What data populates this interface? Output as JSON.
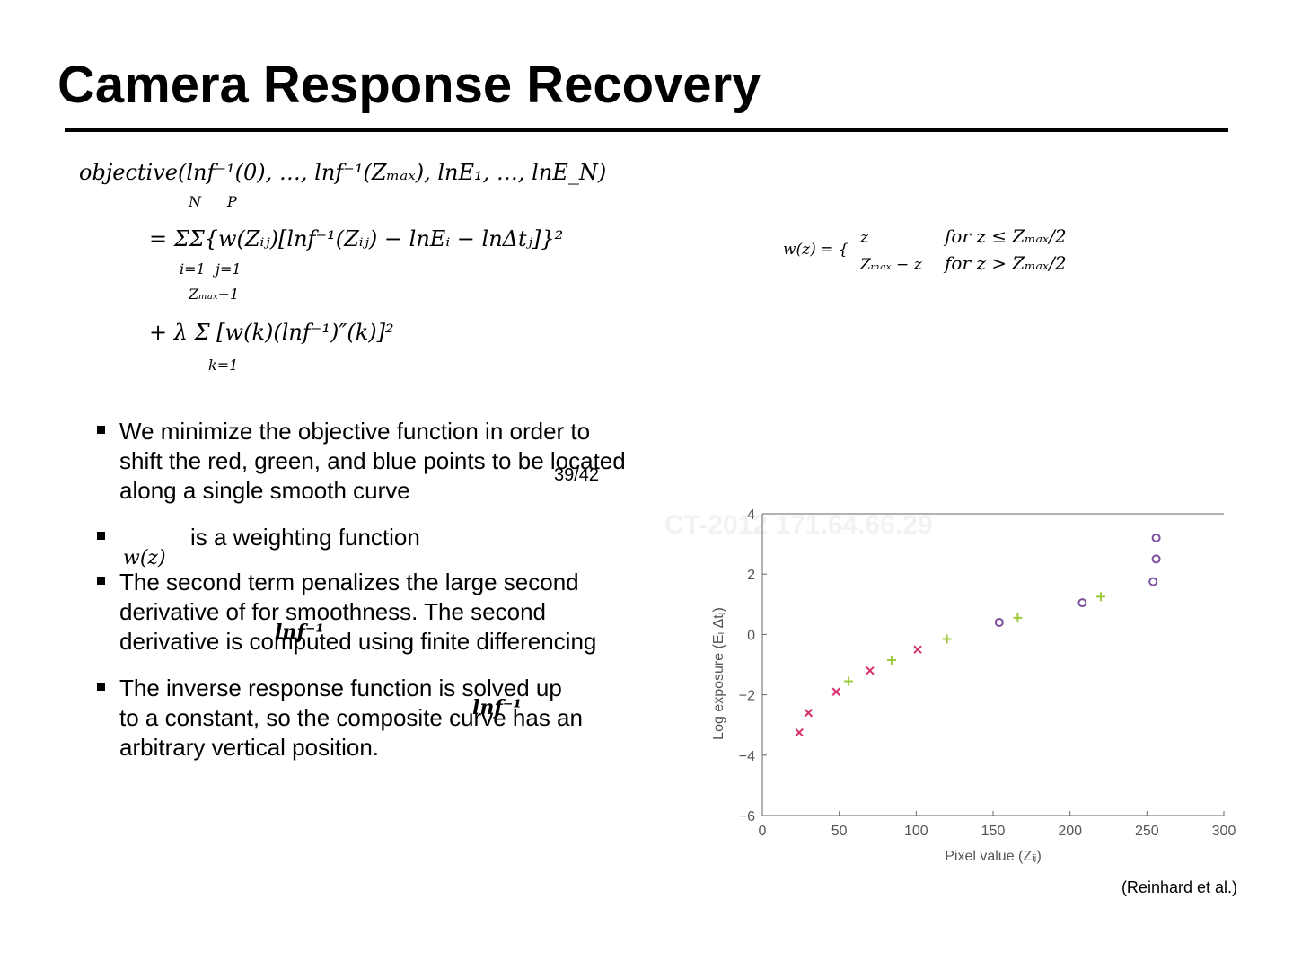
{
  "title": "Camera Response Recovery",
  "objective": {
    "line1": "objective(lnf⁻¹(0), …, lnf⁻¹(Zₘₐₓ), lnE₁, …, lnE_N)",
    "line2": "= ΣΣ{w(Zᵢⱼ)[lnf⁻¹(Zᵢⱼ) − lnEᵢ − lnΔtⱼ]}²",
    "line2_upper": [
      "N",
      "P"
    ],
    "line2_lower": [
      "i=1",
      "j=1"
    ],
    "line3": "+ λ Σ [w(k)(lnf⁻¹)″(k)]²",
    "line3_upper": "Zₘₐₓ−1",
    "line3_lower": "k=1"
  },
  "weight_function": {
    "lhs": "w(z) = {",
    "cases": [
      [
        "z",
        "for z ≤ Zₘₐₓ/2"
      ],
      [
        "Zₘₐₓ − z",
        "for z > Zₘₐₓ/2"
      ]
    ]
  },
  "bullets": [
    {
      "lines": [
        "We minimize the objective function in order to",
        "shift the red, green, and blue points to be located",
        "along a single smooth curve"
      ]
    },
    {
      "math": "w(z)",
      "lines": [
        "is a weighting function"
      ]
    },
    {
      "math": "lnf⁻¹",
      "lines": [
        "The second term penalizes the large second",
        "derivative  of              for smoothness. The second",
        "derivative is computed using finite differencing"
      ]
    },
    {
      "math": "lnf⁻¹",
      "lines": [
        "The inverse response function              is solved up",
        "to a constant, so the composite curve has an",
        "arbitrary vertical position."
      ]
    }
  ],
  "page_number": "39/42",
  "watermark": "CT-2012 171.64.66.29",
  "citation": "(Reinhard et al.)",
  "chart_data": {
    "type": "scatter",
    "x_label": "Pixel value (Zᵢⱼ)",
    "y_label": "Log exposure (Eᵢ Δtⱼ)",
    "xlim": [
      0,
      300
    ],
    "ylim": [
      -6,
      4
    ],
    "xticks": [
      0,
      50,
      100,
      150,
      200,
      250,
      300
    ],
    "yticks": [
      {
        "value": -6,
        "label": "−6"
      },
      {
        "value": -4,
        "label": "−4"
      },
      {
        "value": -2,
        "label": "−2"
      },
      0,
      2,
      4
    ],
    "series": [
      {
        "color": "#d6306e",
        "marker": "x",
        "x": [
          24,
          30,
          48,
          70,
          101
        ],
        "values": [
          -3.25,
          -2.6,
          -1.9,
          -1.2,
          -0.5
        ]
      },
      {
        "color": "#9cc93a",
        "marker": "+",
        "x": [
          56,
          84,
          120,
          166,
          220
        ],
        "values": [
          -1.55,
          -0.85,
          -0.15,
          0.55,
          1.25
        ]
      },
      {
        "color": "#7b4f9e",
        "marker": "o",
        "x": [
          154,
          208,
          254,
          256,
          256
        ],
        "values": [
          0.4,
          1.05,
          1.75,
          2.5,
          3.2
        ]
      }
    ]
  }
}
